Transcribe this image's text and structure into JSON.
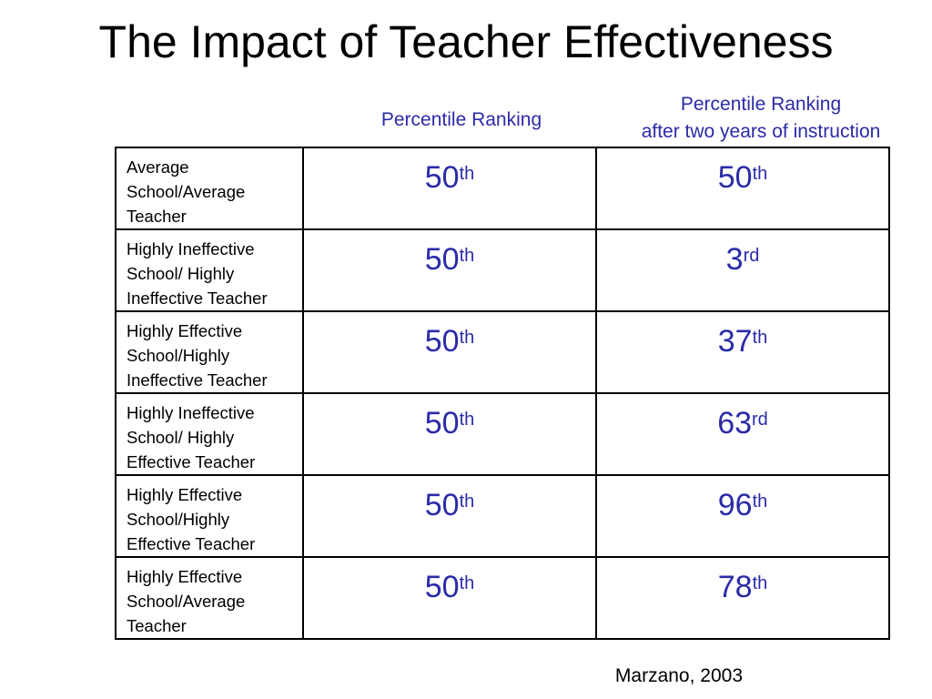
{
  "slide": {
    "title": "The Impact of Teacher Effectiveness",
    "source": "Marzano, 2003"
  },
  "columns": {
    "ranking": "Percentile Ranking",
    "after_line1": "Percentile Ranking",
    "after_line2": "after two years of instruction"
  },
  "rows": [
    {
      "label_lines": [
        "Average",
        "School/Average",
        "Teacher"
      ],
      "start_num": "50",
      "start_suffix": "th",
      "after_num": "50",
      "after_suffix": "th"
    },
    {
      "label_lines": [
        "Highly Ineffective",
        "School/ Highly",
        "Ineffective Teacher"
      ],
      "start_num": "50",
      "start_suffix": "th",
      "after_num": "3",
      "after_suffix": "rd"
    },
    {
      "label_lines": [
        "Highly Effective",
        "School/Highly",
        "Ineffective Teacher"
      ],
      "start_num": "50",
      "start_suffix": "th",
      "after_num": "37",
      "after_suffix": "th"
    },
    {
      "label_lines": [
        "Highly Ineffective",
        "School/ Highly",
        "Effective Teacher"
      ],
      "start_num": "50",
      "start_suffix": "th",
      "after_num": "63",
      "after_suffix": "rd"
    },
    {
      "label_lines": [
        "Highly Effective",
        "School/Highly",
        "Effective Teacher"
      ],
      "start_num": "50",
      "start_suffix": "th",
      "after_num": "96",
      "after_suffix": "th"
    },
    {
      "label_lines": [
        "Highly Effective",
        "School/Average",
        "Teacher"
      ],
      "start_num": "50",
      "start_suffix": "th",
      "after_num": "78",
      "after_suffix": "th"
    }
  ],
  "colors": {
    "value_text": "#2b2ba8",
    "border": "#000000"
  }
}
